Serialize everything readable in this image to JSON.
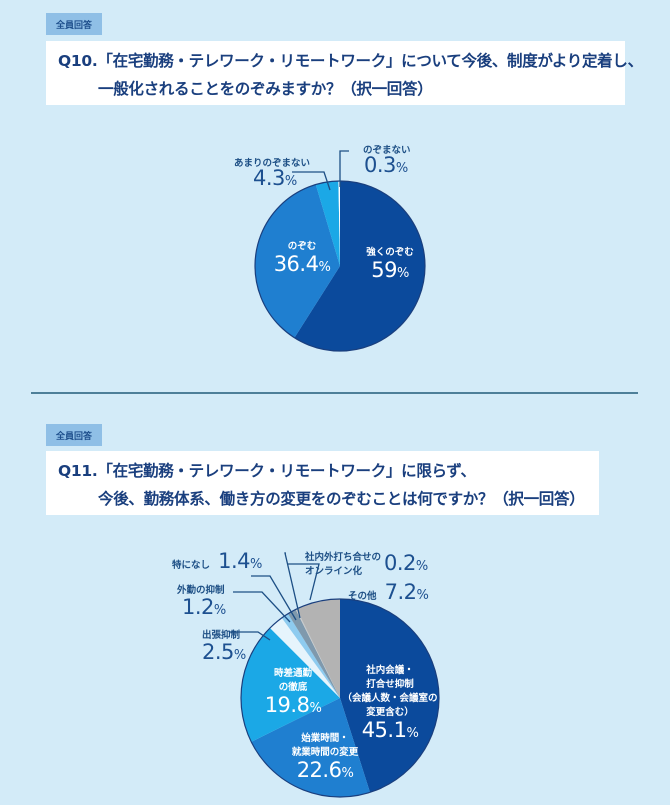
{
  "q10": {
    "badge": "全員回答",
    "line1": "Q10.「在宅勤務・テレワーク・リモートワーク」について今後、制度がより定着し、",
    "line2": "一般化されることをのぞみますか？（択一回答）"
  },
  "q11": {
    "badge": "全員回答",
    "line1": "Q11.「在宅勤務・テレワーク・リモートワーク」に限らず、",
    "line2": "今後、勤務体系、働き方の変更をのぞむことは何ですか？（択一回答）"
  },
  "chart_data": [
    {
      "type": "pie",
      "title": "Q10. 「在宅勤務・テレワーク・リモートワーク」について今後、制度がより定着し、一般化されることをのぞみますか？（択一回答）",
      "categories": [
        "強くのぞむ",
        "のぞむ",
        "あまりのぞまない",
        "のぞまない"
      ],
      "values": [
        59,
        36.4,
        4.3,
        0.3
      ],
      "colors": [
        "#0b4a9c",
        "#1f7fd0",
        "#1ba8e6",
        "#ffffff"
      ],
      "start": "12 o'clock, clockwise",
      "labels": {
        "s0": {
          "cat": "強くのぞむ",
          "pct": "59",
          "unit": "%"
        },
        "s1": {
          "cat": "のぞむ",
          "pct": "36.4",
          "unit": "%"
        },
        "s2": {
          "cat": "あまりのぞまない",
          "pct": "4.3",
          "unit": "%"
        },
        "s3": {
          "cat": "のぞまない",
          "pct": "0.3",
          "unit": "%"
        }
      }
    },
    {
      "type": "pie",
      "title": "Q11. 「在宅勤務・テレワーク・リモートワーク」に限らず、今後、勤務体系、働き方の変更をのぞむことは何ですか？（択一回答）",
      "categories": [
        "社内会議・打合せ抑制（会議人数・会議室の変更含む）",
        "始業時間・就業時間の変更",
        "時差通勤の徹底",
        "出張抑制",
        "外勤の抑制",
        "特になし",
        "社内外打ち合せのオンライン化",
        "その他"
      ],
      "values": [
        45.1,
        22.6,
        19.8,
        2.5,
        1.2,
        1.4,
        0.2,
        7.2
      ],
      "colors": [
        "#0b4a9c",
        "#1f7fd0",
        "#1ba8e6",
        "#e6f4fc",
        "#8ecbef",
        "#7f99ad",
        "#c9c9c9",
        "#b3b3b3"
      ],
      "start": "12 o'clock, clockwise",
      "labels": {
        "s0": {
          "cat1": "社内会議・",
          "cat2": "打合せ抑制",
          "cat3": "（会議人数・会議室の",
          "cat4": "変更含む）",
          "pct": "45.1",
          "unit": "%"
        },
        "s1": {
          "cat1": "始業時間・",
          "cat2": "就業時間の変更",
          "pct": "22.6",
          "unit": "%"
        },
        "s2": {
          "cat1": "時差通勤",
          "cat2": "の徹底",
          "pct": "19.8",
          "unit": "%"
        },
        "s3": {
          "cat": "出張抑制",
          "pct": "2.5",
          "unit": "%"
        },
        "s4": {
          "cat": "外勤の抑制",
          "pct": "1.2",
          "unit": "%"
        },
        "s5": {
          "cat": "特になし",
          "pct": "1.4",
          "unit": "%"
        },
        "s6": {
          "cat1": "社内外打ち合せの",
          "cat2": "オンライン化",
          "pct": "0.2",
          "unit": "%"
        },
        "s7": {
          "cat": "その他",
          "pct": "7.2",
          "unit": "%"
        }
      }
    }
  ]
}
